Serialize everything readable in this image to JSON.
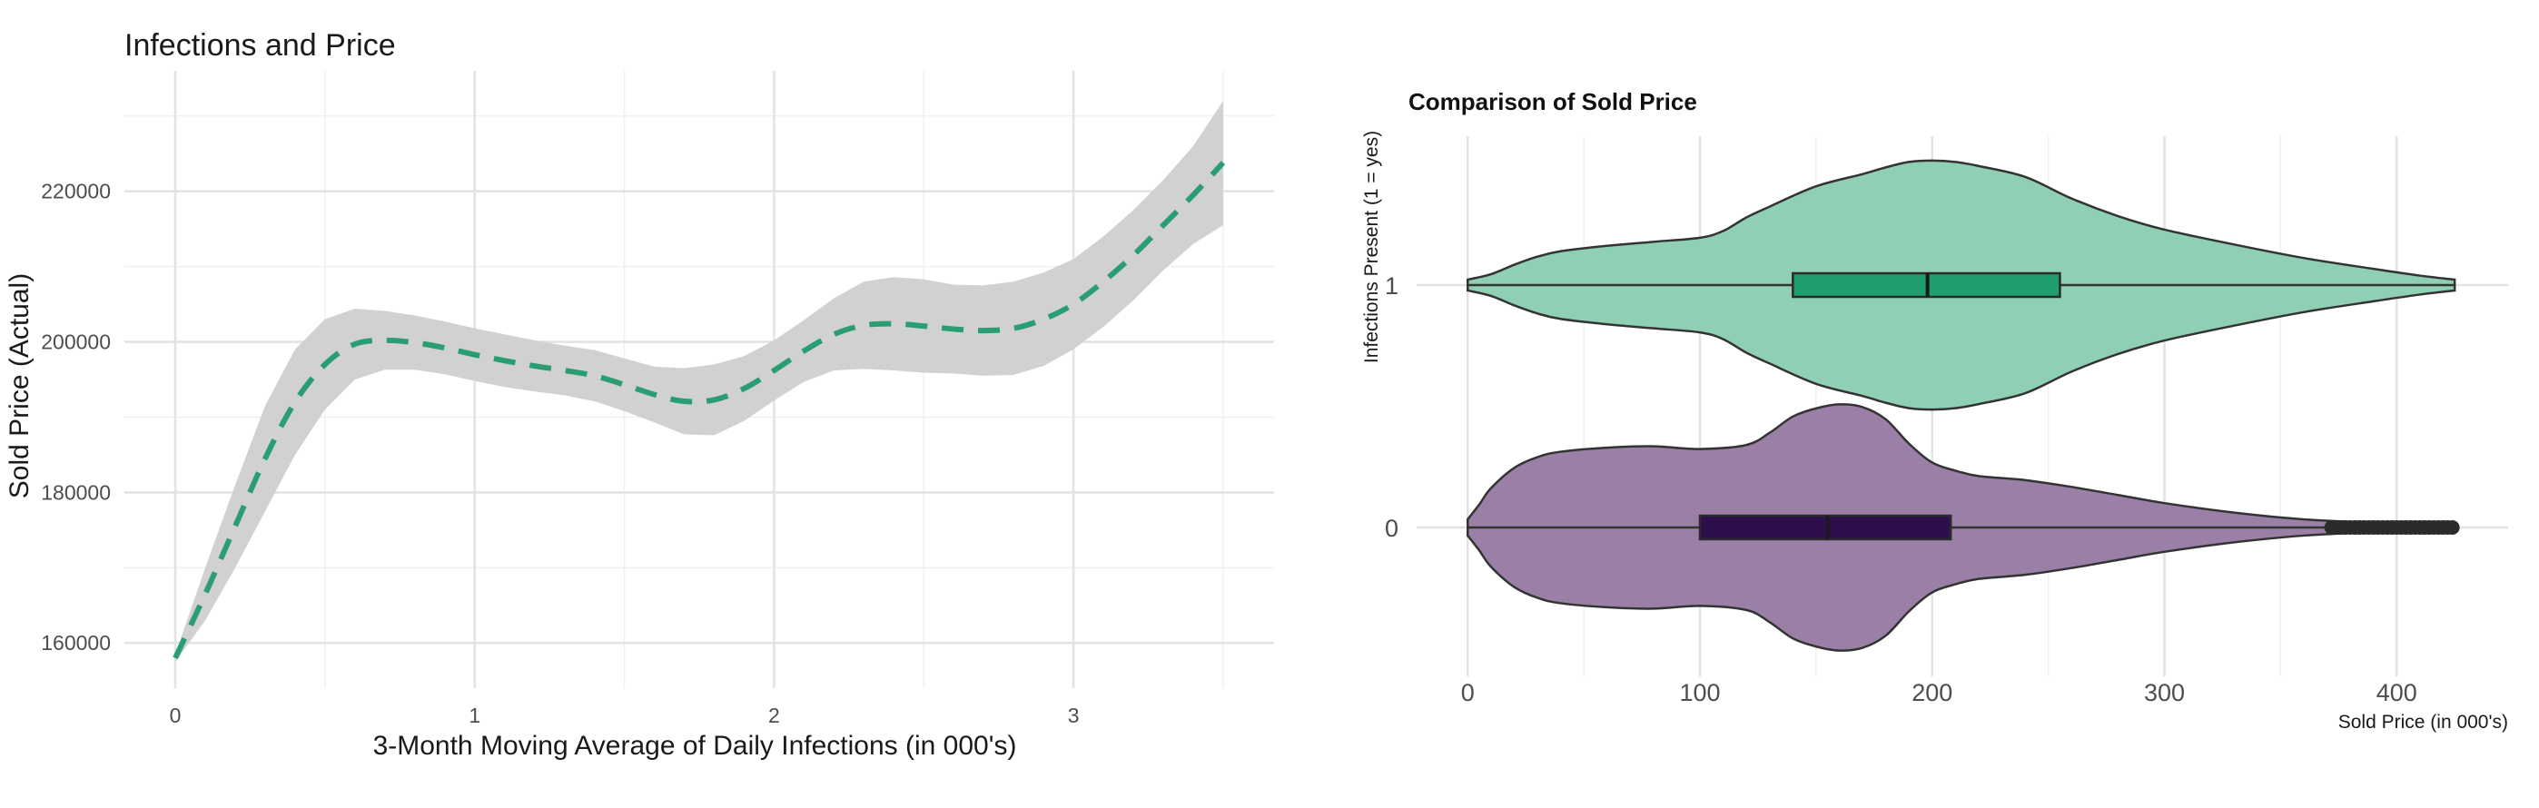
{
  "chart_data": [
    {
      "type": "line",
      "title": "Infections and Price",
      "xlabel": "3-Month Moving Average of Daily Infections (in 000's)",
      "ylabel": "Sold Price (Actual)",
      "xlim": [
        -0.17,
        3.67
      ],
      "ylim": [
        154000,
        236000
      ],
      "x_ticks": [
        0,
        1,
        2,
        3
      ],
      "x_tick_labels": [
        "0",
        "1",
        "2",
        "3"
      ],
      "y_ticks": [
        160000,
        180000,
        200000,
        220000
      ],
      "y_tick_labels": [
        "160000",
        "180000",
        "200000",
        "220000"
      ],
      "grid": true,
      "line_color": "#2a9d73",
      "line_style": "dashed",
      "band_color": "#d1d1d1",
      "x": [
        0,
        0.1,
        0.2,
        0.3,
        0.4,
        0.5,
        0.6,
        0.7,
        0.8,
        0.9,
        1.0,
        1.1,
        1.2,
        1.3,
        1.4,
        1.5,
        1.6,
        1.7,
        1.8,
        1.9,
        2.0,
        2.1,
        2.2,
        2.3,
        2.4,
        2.5,
        2.6,
        2.7,
        2.8,
        2.9,
        3.0,
        3.1,
        3.2,
        3.3,
        3.4,
        3.5
      ],
      "y": [
        158000,
        166500,
        175500,
        184500,
        192000,
        197000,
        199700,
        200200,
        199900,
        199200,
        198300,
        197500,
        196800,
        196200,
        195500,
        194300,
        193000,
        192100,
        192300,
        193800,
        196200,
        198800,
        201000,
        202200,
        202400,
        202100,
        201700,
        201500,
        201800,
        203000,
        205000,
        208000,
        211500,
        215500,
        219500,
        223800
      ],
      "lower": [
        157500,
        163000,
        170000,
        177500,
        185000,
        191000,
        195000,
        196300,
        196300,
        195700,
        194800,
        194000,
        193400,
        192900,
        192100,
        190800,
        189300,
        187700,
        187600,
        189500,
        192200,
        194700,
        196200,
        196400,
        196200,
        195900,
        195800,
        195500,
        195600,
        196800,
        199000,
        202000,
        205500,
        209500,
        213000,
        215500
      ],
      "upper": [
        158500,
        170000,
        181000,
        191500,
        199000,
        203000,
        204400,
        204100,
        203500,
        202700,
        201800,
        201000,
        200200,
        199500,
        198900,
        197800,
        196700,
        196500,
        197000,
        198100,
        200200,
        202900,
        205800,
        208000,
        208600,
        208300,
        207600,
        207500,
        208000,
        209200,
        211000,
        214000,
        217500,
        221500,
        226000,
        232000
      ]
    },
    {
      "type": "violin",
      "title": "Comparison of Sold Price",
      "xlabel": "Sold Price (in 000's)",
      "ylabel": "Infections Present (1 = yes)",
      "xlim": [
        -22,
        448
      ],
      "x_ticks": [
        0,
        100,
        200,
        300,
        400
      ],
      "x_tick_labels": [
        "0",
        "100",
        "200",
        "300",
        "400"
      ],
      "categories": [
        "1",
        "0"
      ],
      "grid": true,
      "groups": [
        {
          "category": "1",
          "violin_color": "#8fd0b4",
          "box_color": "#1f9e6e",
          "outline_color": "#333333",
          "range": [
            0,
            425
          ],
          "box": {
            "q1": 140,
            "median": 198,
            "q3": 255
          },
          "density_x": [
            0,
            10,
            20,
            30,
            40,
            60,
            80,
            100,
            110,
            120,
            130,
            150,
            170,
            180,
            190,
            200,
            210,
            220,
            240,
            260,
            280,
            300,
            330,
            360,
            390,
            410,
            425
          ],
          "density_half_width": [
            0.04,
            0.08,
            0.15,
            0.21,
            0.25,
            0.29,
            0.32,
            0.35,
            0.4,
            0.5,
            0.58,
            0.73,
            0.82,
            0.87,
            0.91,
            0.92,
            0.91,
            0.88,
            0.8,
            0.64,
            0.51,
            0.41,
            0.3,
            0.2,
            0.12,
            0.07,
            0.04
          ],
          "outliers": []
        },
        {
          "category": "0",
          "violin_color": "#9a80a6",
          "box_color": "#2e0f4e",
          "outline_color": "#333333",
          "range": [
            0,
            425
          ],
          "box": {
            "q1": 100,
            "median": 155,
            "q3": 208
          },
          "density_x": [
            0,
            5,
            10,
            20,
            30,
            40,
            60,
            80,
            100,
            120,
            130,
            140,
            150,
            160,
            170,
            180,
            190,
            200,
            210,
            220,
            240,
            260,
            280,
            300,
            330,
            360,
            390,
            410,
            425
          ],
          "density_half_width": [
            0.06,
            0.17,
            0.29,
            0.44,
            0.52,
            0.56,
            0.59,
            0.6,
            0.58,
            0.61,
            0.7,
            0.82,
            0.88,
            0.91,
            0.89,
            0.8,
            0.62,
            0.48,
            0.42,
            0.38,
            0.35,
            0.3,
            0.24,
            0.18,
            0.11,
            0.06,
            0.035,
            0.025,
            0.02
          ],
          "outliers": [
            372,
            374,
            376,
            378,
            380,
            382,
            384,
            386,
            388,
            390,
            392,
            394,
            396,
            398,
            400,
            402,
            404,
            406,
            408,
            410,
            412,
            414,
            416,
            418,
            420,
            422,
            424
          ]
        }
      ]
    }
  ]
}
